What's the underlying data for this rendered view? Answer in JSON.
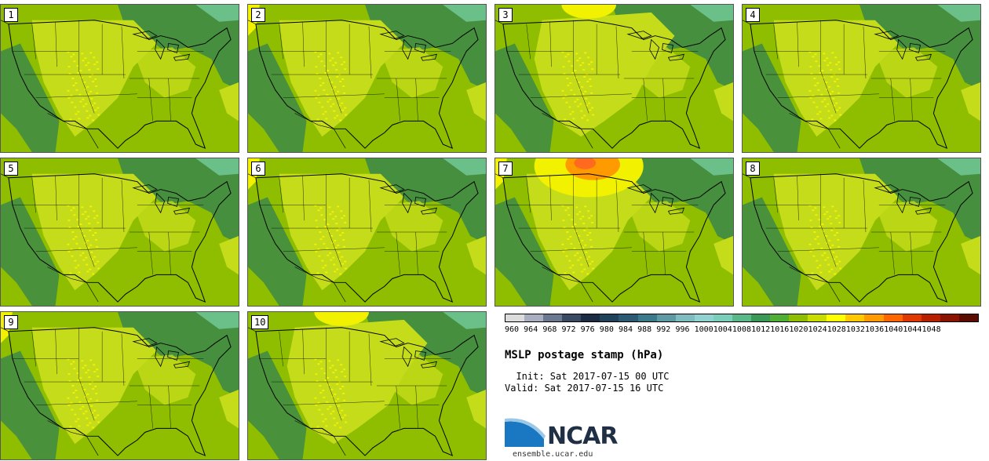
{
  "panels": [
    {
      "label": "1",
      "variant": 0
    },
    {
      "label": "2",
      "variant": 1
    },
    {
      "label": "3",
      "variant": 2
    },
    {
      "label": "4",
      "variant": 3
    },
    {
      "label": "5",
      "variant": 0
    },
    {
      "label": "6",
      "variant": 1
    },
    {
      "label": "7",
      "variant": 4
    },
    {
      "label": "8",
      "variant": 3
    },
    {
      "label": "9",
      "variant": 1
    },
    {
      "label": "10",
      "variant": 2
    }
  ],
  "colorbar": {
    "labels": [
      "960",
      "964",
      "968",
      "972",
      "976",
      "980",
      "984",
      "988",
      "992",
      "996",
      "1000",
      "1004",
      "1008",
      "1012",
      "1016",
      "1020",
      "1024",
      "1028",
      "1032",
      "1036",
      "1040",
      "1044",
      "1048"
    ],
    "colors": [
      "#dcdcdc",
      "#a9aec0",
      "#6a7890",
      "#3a4a62",
      "#1b2c44",
      "#20425a",
      "#2c5a72",
      "#3a7a8a",
      "#5f9aa4",
      "#7fbcc0",
      "#8fd2d0",
      "#7acfba",
      "#5bb889",
      "#3a9a55",
      "#4fae34",
      "#8fbe00",
      "#c8dc00",
      "#ffff00",
      "#ffc800",
      "#ff9a00",
      "#ff6600",
      "#e03800",
      "#b82000",
      "#8a1400",
      "#5c0c00"
    ],
    "palette": {
      "dark": "#3e8a45",
      "mid": "#5aae3a",
      "base": "#8fbe00",
      "light": "#c4dc1a",
      "yellow": "#f2f200",
      "orange": "#ff9a00",
      "red": "#ff6a1e",
      "line": "#000000"
    }
  },
  "title": "MSLP postage stamp (hPa)",
  "init": "  Init: Sat 2017-07-15 00 UTC",
  "valid": "Valid: Sat 2017-07-15 16 UTC",
  "logo": {
    "name": "NCAR",
    "site": "ensemble.ucar.edu"
  }
}
